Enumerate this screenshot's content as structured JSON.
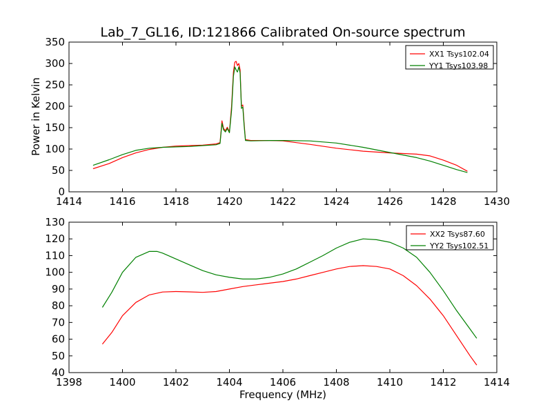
{
  "figure": {
    "title": "Lab_7_GL16, ID:121866 Calibrated On-source spectrum"
  },
  "chart_data": [
    {
      "type": "line",
      "title": "Lab_7_GL16, ID:121866 Calibrated On-source spectrum",
      "xlabel": "",
      "ylabel": "Power in Kelvin",
      "xlim": [
        1414,
        1430
      ],
      "ylim": [
        0,
        350
      ],
      "xticks": [
        "1414",
        "1416",
        "1418",
        "1420",
        "1422",
        "1424",
        "1426",
        "1428",
        "1430"
      ],
      "yticks": [
        "0",
        "50",
        "100",
        "150",
        "200",
        "250",
        "300",
        "350"
      ],
      "grid": false,
      "legend": "top-right",
      "series": [
        {
          "name": "XX1 Tsys102.04",
          "color": "#ff0000",
          "points": [
            [
              1414.9,
              54
            ],
            [
              1415.5,
              66
            ],
            [
              1416.0,
              80
            ],
            [
              1416.5,
              91
            ],
            [
              1417.0,
              99
            ],
            [
              1417.5,
              104
            ],
            [
              1418.0,
              107
            ],
            [
              1418.5,
              108
            ],
            [
              1419.0,
              109
            ],
            [
              1419.5,
              112
            ],
            [
              1419.65,
              115
            ],
            [
              1419.72,
              166
            ],
            [
              1419.78,
              148
            ],
            [
              1419.85,
              143
            ],
            [
              1419.92,
              151
            ],
            [
              1420.0,
              140
            ],
            [
              1420.08,
              200
            ],
            [
              1420.15,
              280
            ],
            [
              1420.2,
              303
            ],
            [
              1420.25,
              305
            ],
            [
              1420.3,
              295
            ],
            [
              1420.35,
              300
            ],
            [
              1420.4,
              285
            ],
            [
              1420.45,
              200
            ],
            [
              1420.5,
              203
            ],
            [
              1420.55,
              160
            ],
            [
              1420.6,
              122
            ],
            [
              1420.8,
              120
            ],
            [
              1421.5,
              120
            ],
            [
              1422.0,
              119
            ],
            [
              1423.0,
              111
            ],
            [
              1424.0,
              102
            ],
            [
              1425.0,
              95
            ],
            [
              1426.0,
              91
            ],
            [
              1427.0,
              88
            ],
            [
              1427.5,
              84
            ],
            [
              1428.0,
              74
            ],
            [
              1428.5,
              62
            ],
            [
              1428.9,
              48
            ]
          ]
        },
        {
          "name": "YY1 Tsys103.98",
          "color": "#008000",
          "points": [
            [
              1414.9,
              62
            ],
            [
              1415.5,
              75
            ],
            [
              1416.0,
              87
            ],
            [
              1416.5,
              97
            ],
            [
              1417.0,
              102
            ],
            [
              1417.5,
              104
            ],
            [
              1418.0,
              105
            ],
            [
              1418.5,
              106
            ],
            [
              1419.0,
              108
            ],
            [
              1419.5,
              110
            ],
            [
              1419.65,
              113
            ],
            [
              1419.72,
              160
            ],
            [
              1419.78,
              145
            ],
            [
              1419.85,
              140
            ],
            [
              1419.92,
              148
            ],
            [
              1420.0,
              138
            ],
            [
              1420.08,
              190
            ],
            [
              1420.15,
              270
            ],
            [
              1420.2,
              292
            ],
            [
              1420.25,
              285
            ],
            [
              1420.3,
              280
            ],
            [
              1420.35,
              292
            ],
            [
              1420.4,
              278
            ],
            [
              1420.45,
              195
            ],
            [
              1420.5,
              198
            ],
            [
              1420.55,
              155
            ],
            [
              1420.6,
              120
            ],
            [
              1420.8,
              119
            ],
            [
              1421.5,
              120
            ],
            [
              1422.0,
              120
            ],
            [
              1423.0,
              119
            ],
            [
              1424.0,
              114
            ],
            [
              1425.0,
              104
            ],
            [
              1426.0,
              92
            ],
            [
              1427.0,
              80
            ],
            [
              1427.5,
              72
            ],
            [
              1428.0,
              62
            ],
            [
              1428.5,
              52
            ],
            [
              1428.9,
              45
            ]
          ]
        }
      ]
    },
    {
      "type": "line",
      "title": "",
      "xlabel": "Frequency (MHz)",
      "ylabel": "",
      "xlim": [
        1398,
        1414
      ],
      "ylim": [
        40,
        130
      ],
      "xticks": [
        "1398",
        "1400",
        "1402",
        "1404",
        "1406",
        "1408",
        "1410",
        "1412",
        "1414"
      ],
      "yticks": [
        "40",
        "50",
        "60",
        "70",
        "80",
        "90",
        "100",
        "110",
        "120",
        "130"
      ],
      "grid": false,
      "legend": "top-right",
      "series": [
        {
          "name": "XX2 Tsys87.60",
          "color": "#ff0000",
          "points": [
            [
              1399.25,
              57
            ],
            [
              1399.6,
              64
            ],
            [
              1400.0,
              74
            ],
            [
              1400.5,
              82
            ],
            [
              1401.0,
              86.5
            ],
            [
              1401.5,
              88.2
            ],
            [
              1402.0,
              88.5
            ],
            [
              1402.5,
              88.3
            ],
            [
              1403.0,
              88
            ],
            [
              1403.5,
              88.5
            ],
            [
              1404.0,
              90
            ],
            [
              1404.5,
              91.5
            ],
            [
              1405.0,
              92.5
            ],
            [
              1405.5,
              93.5
            ],
            [
              1406.0,
              94.5
            ],
            [
              1406.5,
              96
            ],
            [
              1407.0,
              98
            ],
            [
              1407.5,
              100
            ],
            [
              1408.0,
              102
            ],
            [
              1408.5,
              103.5
            ],
            [
              1409.0,
              104
            ],
            [
              1409.5,
              103.5
            ],
            [
              1410.0,
              102
            ],
            [
              1410.5,
              98
            ],
            [
              1411.0,
              92
            ],
            [
              1411.5,
              84
            ],
            [
              1412.0,
              74
            ],
            [
              1412.5,
              62
            ],
            [
              1413.0,
              50
            ],
            [
              1413.25,
              44.5
            ]
          ]
        },
        {
          "name": "YY2 Tsys102.51",
          "color": "#008000",
          "points": [
            [
              1399.25,
              79
            ],
            [
              1399.6,
              88
            ],
            [
              1400.0,
              100
            ],
            [
              1400.5,
              109
            ],
            [
              1401.0,
              112.5
            ],
            [
              1401.3,
              112.5
            ],
            [
              1401.5,
              111.5
            ],
            [
              1402.0,
              108
            ],
            [
              1402.5,
              104.5
            ],
            [
              1403.0,
              101
            ],
            [
              1403.5,
              98.5
            ],
            [
              1404.0,
              97
            ],
            [
              1404.5,
              96
            ],
            [
              1405.0,
              96
            ],
            [
              1405.5,
              97
            ],
            [
              1406.0,
              99
            ],
            [
              1406.5,
              102
            ],
            [
              1407.0,
              106
            ],
            [
              1407.5,
              110
            ],
            [
              1408.0,
              114.5
            ],
            [
              1408.5,
              118
            ],
            [
              1409.0,
              120
            ],
            [
              1409.5,
              119.5
            ],
            [
              1410.0,
              118
            ],
            [
              1410.5,
              114.5
            ],
            [
              1411.0,
              109
            ],
            [
              1411.5,
              100
            ],
            [
              1412.0,
              89
            ],
            [
              1412.5,
              77
            ],
            [
              1413.0,
              66
            ],
            [
              1413.25,
              60.5
            ]
          ]
        }
      ]
    }
  ]
}
